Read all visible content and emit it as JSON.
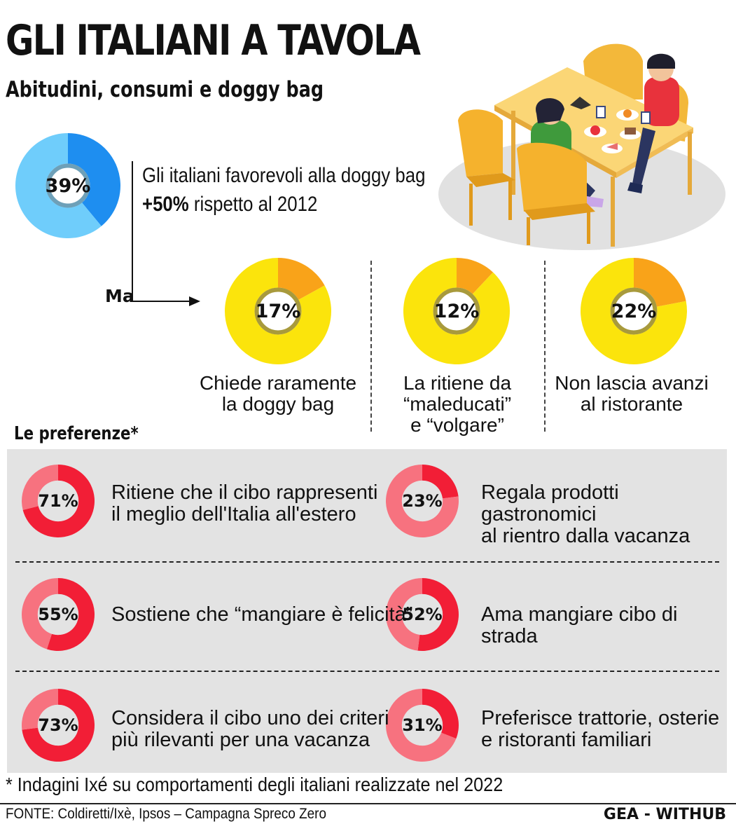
{
  "header": {
    "title": "GLI ITALIANI A TAVOLA",
    "subtitle": "Abitudini, consumi e doggy bag"
  },
  "main_stat": {
    "value_label": "39%",
    "text_line1": "Gli italiani favorevoli alla doggy bag",
    "text_line2_bold": "+50%",
    "text_line2_rest": " rispetto al 2012",
    "connector_label": "Ma"
  },
  "colors": {
    "blue_dark": "#1e8ef0",
    "blue_light": "#6fcdfb",
    "yellow": "#fbe40c",
    "orange": "#f9a319",
    "red": "#f21e36",
    "pink": "#f7727f",
    "panel_bg": "#e3e3e3"
  },
  "yellow_stats": [
    {
      "label": "17%",
      "lines": [
        "Chiede raramente",
        "la doggy bag"
      ]
    },
    {
      "label": "12%",
      "lines": [
        "La ritiene da",
        "“maleducati”",
        "e “volgare”"
      ]
    },
    {
      "label": "22%",
      "lines": [
        "Non lascia avanzi",
        "al ristorante"
      ]
    }
  ],
  "preferences": {
    "heading": "Le preferenze*",
    "items": [
      {
        "label": "71%",
        "lines": [
          "Ritiene che il cibo rappresenti",
          "il meglio dell'Italia all'estero"
        ]
      },
      {
        "label": "23%",
        "lines": [
          "Regala prodotti gastronomici",
          "al rientro dalla vacanza"
        ]
      },
      {
        "label": "55%",
        "lines": [
          "Sostiene che “mangiare è felicità”"
        ]
      },
      {
        "label": "52%",
        "lines": [
          "Ama mangiare cibo di strada"
        ]
      },
      {
        "label": "73%",
        "lines": [
          "Considera il cibo uno dei criteri",
          "più rilevanti per una vacanza"
        ]
      },
      {
        "label": "31%",
        "lines": [
          "Preferisce trattorie, osterie",
          "e ristoranti familiari"
        ]
      }
    ]
  },
  "chart_data": [
    {
      "type": "pie",
      "name": "",
      "values": [
        39,
        61
      ]
    },
    {
      "type": "pie",
      "values": [
        17,
        83
      ]
    },
    {
      "type": "pie",
      "values": [
        12,
        88
      ]
    },
    {
      "type": "pie",
      "values": [
        22,
        78
      ]
    },
    {
      "type": "pie",
      "values": [
        71,
        29
      ]
    },
    {
      "type": "pie",
      "values": [
        23,
        77
      ]
    },
    {
      "type": "pie",
      "values": [
        55,
        45
      ]
    },
    {
      "type": "pie",
      "values": [
        52,
        48
      ]
    },
    {
      "type": "pie",
      "values": [
        73,
        27
      ]
    },
    {
      "type": "pie",
      "values": [
        31,
        69
      ]
    }
  ],
  "footer": {
    "footnote": "* Indagini Ixé su comportamenti degli italiani realizzate nel 2022",
    "source": "FONTE: Coldiretti/Ixè, Ipsos – Campagna Spreco Zero",
    "brand": "GEA - WITHUB"
  }
}
